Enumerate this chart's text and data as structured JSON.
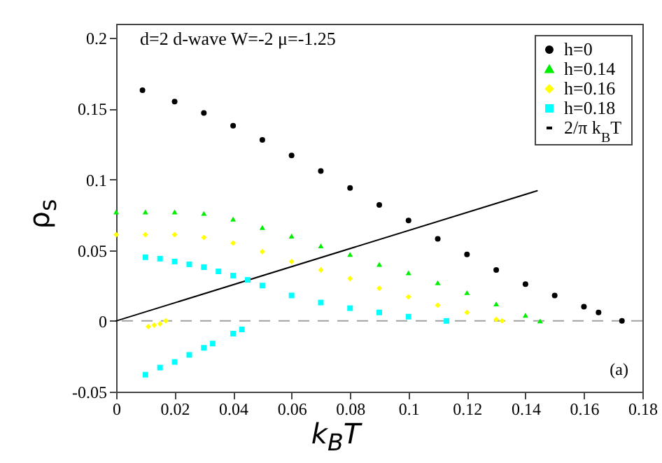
{
  "chart_data": {
    "type": "scatter",
    "title": "d=2 d-wave W=-2 μ=-1.25",
    "xlabel": "k$_{B}$T",
    "ylabel": "ρ$_{s}$",
    "annotations": [
      "(a)"
    ],
    "xlim": [
      0,
      0.18
    ],
    "xticks": [
      0,
      0.02,
      0.04,
      0.06,
      0.08,
      0.1,
      0.12,
      0.14,
      0.16,
      0.18
    ],
    "ylim": [
      -0.05,
      0.21
    ],
    "yticks": [
      -0.05,
      0,
      0.05,
      0.1,
      0.15,
      0.2
    ],
    "legend": "top right",
    "ref_lines": [
      {
        "axis": "y",
        "value": 0,
        "color": "#a0a0a0",
        "line_style": "dashed"
      }
    ],
    "series": [
      {
        "name": "h=0",
        "color": "#000000",
        "marker": "circle",
        "x": [
          0.009,
          0.02,
          0.03,
          0.04,
          0.05,
          0.06,
          0.07,
          0.08,
          0.09,
          0.1,
          0.11,
          0.12,
          0.13,
          0.14,
          0.15,
          0.16,
          0.165,
          0.173
        ],
        "values": [
          0.163,
          0.155,
          0.147,
          0.138,
          0.128,
          0.117,
          0.106,
          0.094,
          0.082,
          0.071,
          0.058,
          0.047,
          0.036,
          0.026,
          0.018,
          0.01,
          0.006,
          0
        ]
      },
      {
        "name": "h=0.14",
        "color": "#00ee00",
        "marker": "triangle",
        "x": [
          0,
          0.01,
          0.02,
          0.03,
          0.04,
          0.05,
          0.06,
          0.07,
          0.08,
          0.09,
          0.1,
          0.11,
          0.12,
          0.13,
          0.14,
          0.145
        ],
        "values": [
          0.077,
          0.077,
          0.077,
          0.076,
          0.072,
          0.066,
          0.06,
          0.053,
          0.047,
          0.04,
          0.034,
          0.027,
          0.02,
          0.012,
          0.004,
          0
        ]
      },
      {
        "name": "h=0.16",
        "color": "#ffff00",
        "marker": "diamond",
        "x": [
          0,
          0.01,
          0.02,
          0.03,
          0.04,
          0.05,
          0.06,
          0.07,
          0.08,
          0.09,
          0.1,
          0.11,
          0.12,
          0.13,
          0.132,
          0.011,
          0.013,
          0.015,
          0.017
        ],
        "values": [
          0.061,
          0.061,
          0.061,
          0.059,
          0.055,
          0.049,
          0.042,
          0.036,
          0.03,
          0.023,
          0.017,
          0.011,
          0.006,
          0.001,
          0,
          -0.004,
          -0.003,
          -0.002,
          0
        ]
      },
      {
        "name": "h=0.18",
        "color": "#00ffff",
        "marker": "square",
        "x": [
          0.01,
          0.015,
          0.02,
          0.025,
          0.03,
          0.035,
          0.04,
          0.045,
          0.05,
          0.06,
          0.07,
          0.08,
          0.09,
          0.1,
          0.113,
          0.01,
          0.015,
          0.02,
          0.025,
          0.03,
          0.033,
          0.04,
          0.043
        ],
        "values": [
          0.045,
          0.044,
          0.042,
          0.04,
          0.038,
          0.035,
          0.032,
          0.029,
          0.025,
          0.018,
          0.013,
          0.009,
          0.006,
          0.003,
          0,
          -0.038,
          -0.033,
          -0.029,
          -0.024,
          -0.019,
          -0.016,
          -0.009,
          -0.006
        ]
      },
      {
        "name": "2/π k$_{B}$T",
        "color": "#000000",
        "type": "line",
        "x": [
          0,
          0.144
        ],
        "values": [
          0,
          0.092
        ]
      }
    ]
  }
}
